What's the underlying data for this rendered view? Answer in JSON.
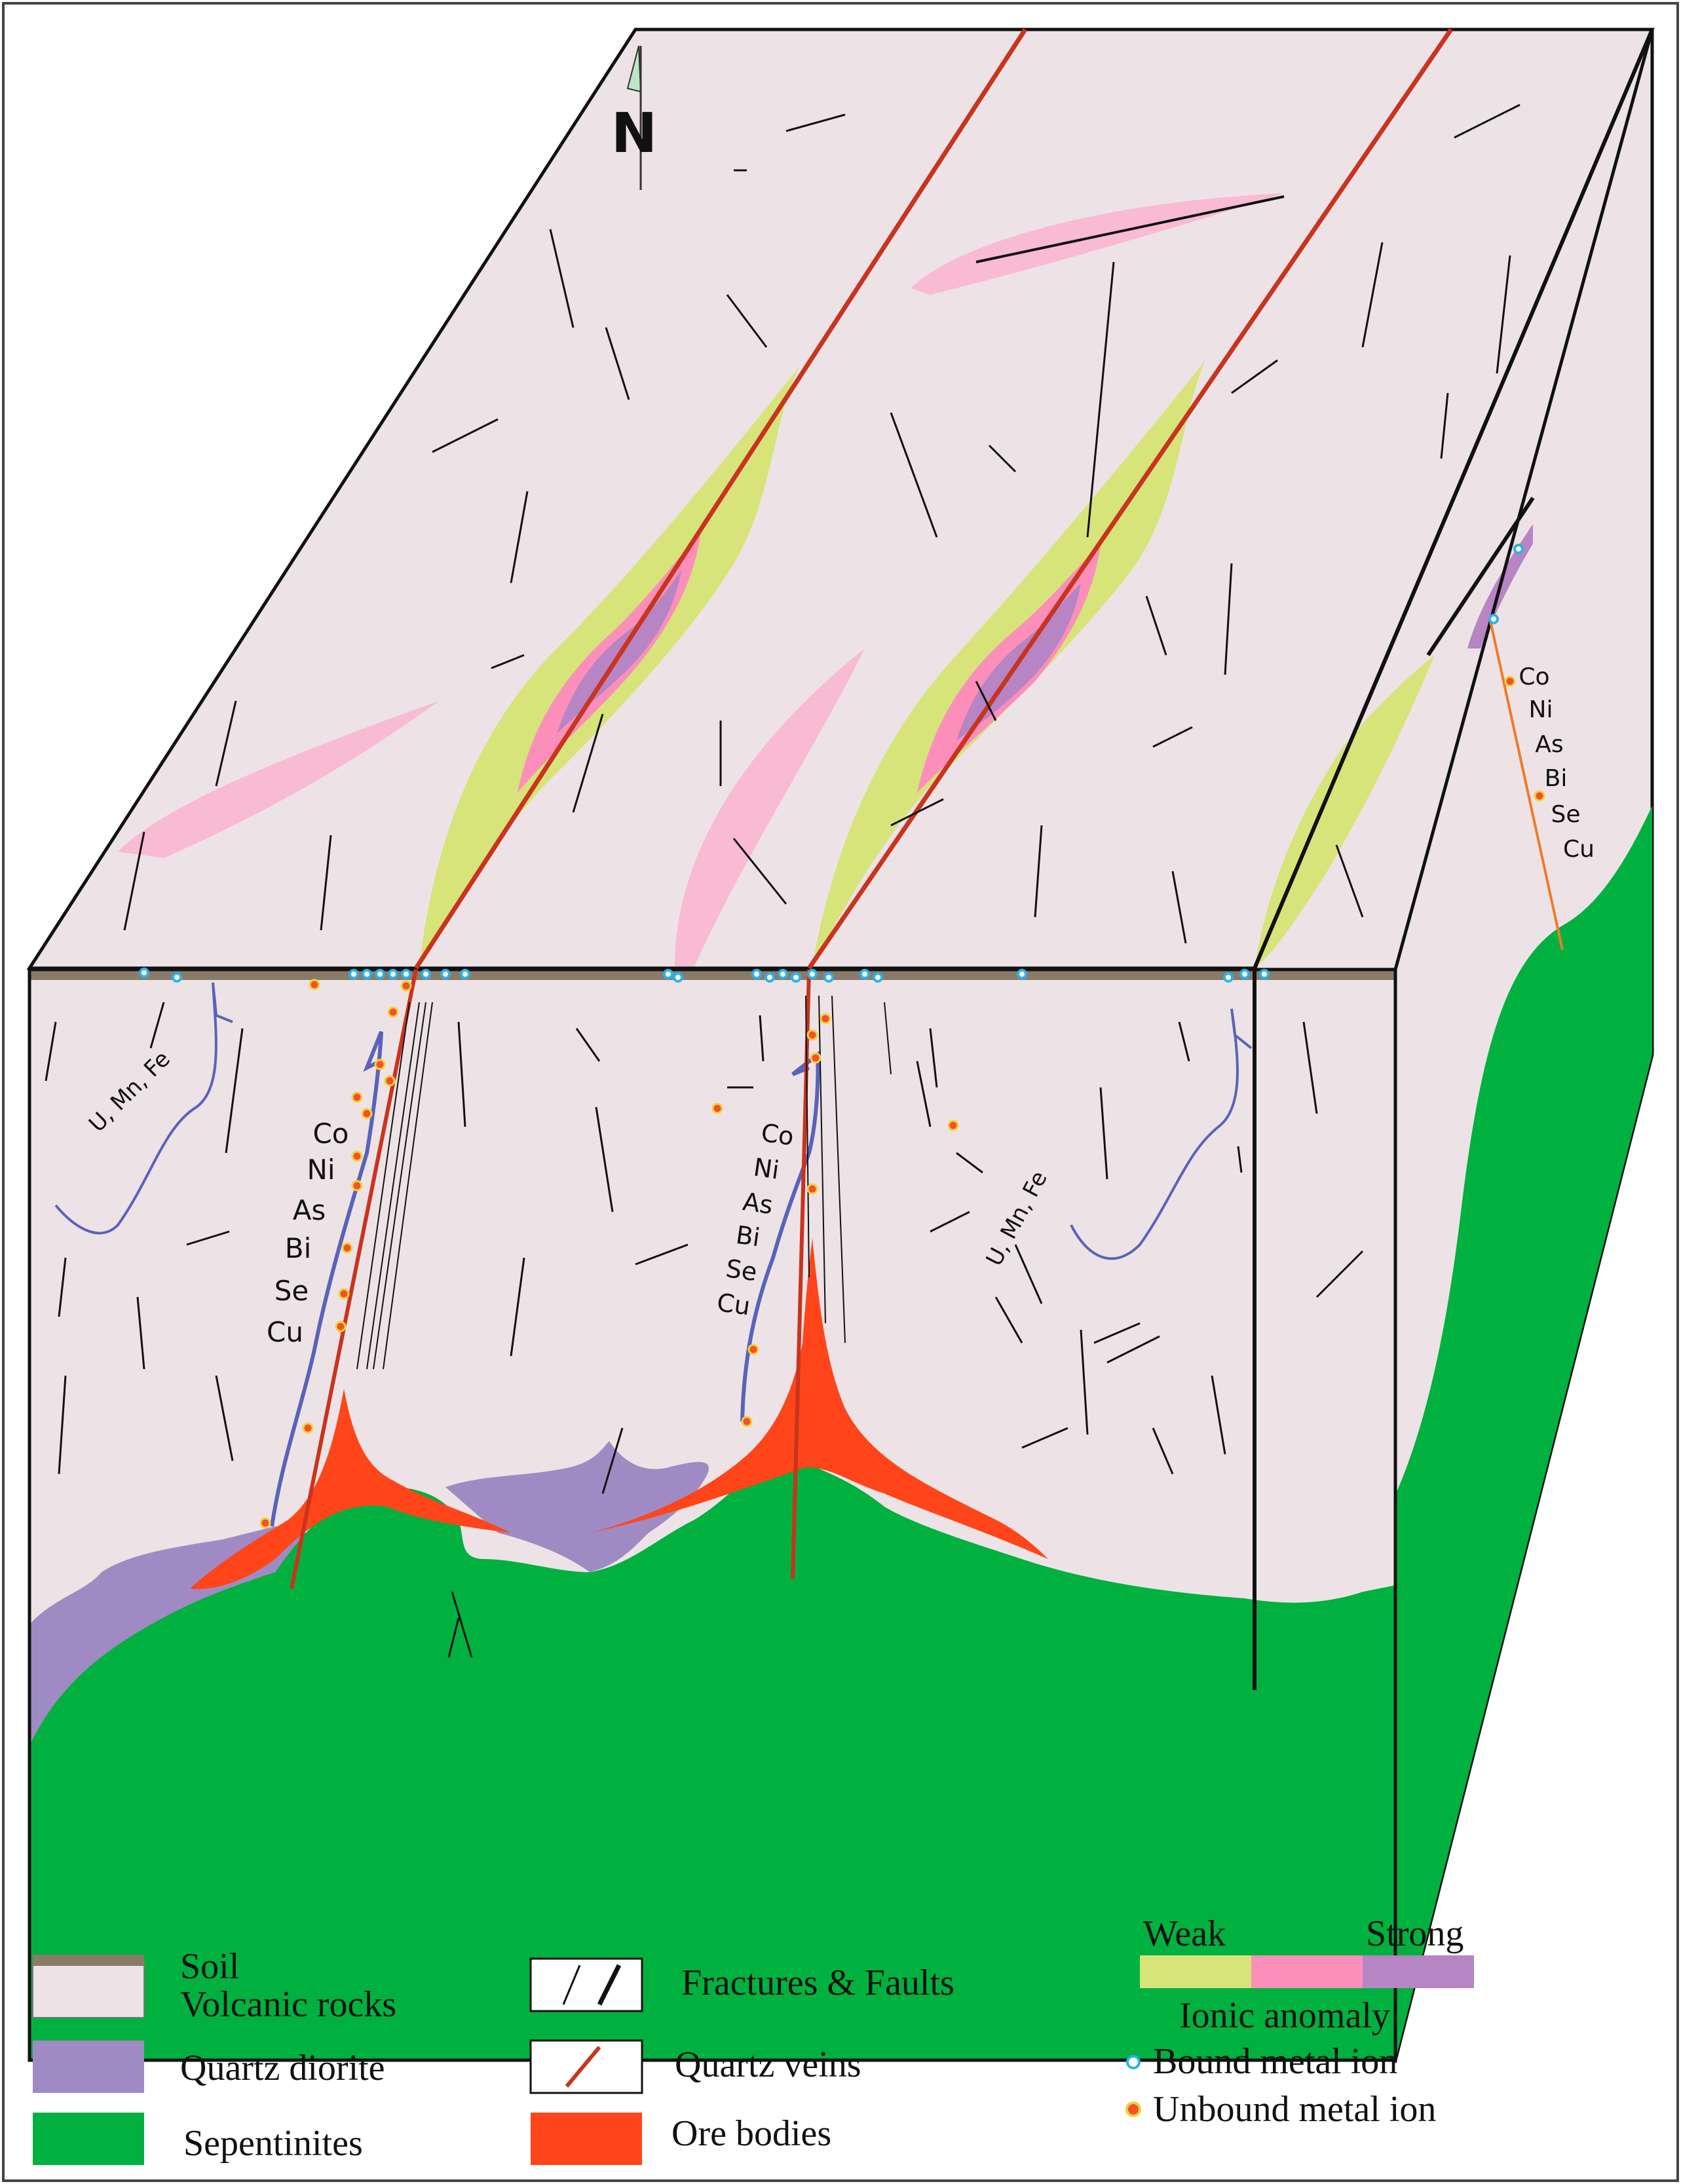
{
  "north_label": "N",
  "left_elements": [
    "Co",
    "Ni",
    "As",
    "Bi",
    "Se",
    "Cu"
  ],
  "mid_elements": [
    "Co",
    "Ni",
    "As",
    "Bi",
    "Se",
    "Cu"
  ],
  "right_elements": [
    "Co",
    "Ni",
    "As",
    "Bi",
    "Se",
    "Cu"
  ],
  "left_redox": "U, Mn, Fe",
  "mid_redox": "U, Mn, Fe",
  "legend": {
    "soil": "Soil",
    "volcanic": "Volcanic rocks",
    "quartz_diorite": "Quartz diorite",
    "serpentinites": "Sepentinites",
    "fractures": "Fractures & Faults",
    "quartz_veins": "Quartz veins",
    "ore_bodies": "Ore bodies",
    "weak": "Weak",
    "strong": "Strong",
    "ionic_anomaly": "Ionic anomaly",
    "bound_ion": "Bound  metal ion",
    "unbound_ion": "Unbound  metal ion"
  },
  "colors": {
    "volcanic": "#ede3e6",
    "soil": "#8a7a6a",
    "quartz_diorite": "#a08ac4",
    "serpentinite": "#00b140",
    "ore": "#ff4519",
    "vein": "#c8341e",
    "weak": "#d6e47a",
    "medium": "#fb8fba",
    "strong": "#b784c4",
    "pink_halo": "#f9bad3",
    "bound_ion": "#2bb3e8",
    "unbound_ion_fill": "#f4502a",
    "unbound_ion_ring": "#f0d23a",
    "redox_line": "#5a63b8"
  }
}
